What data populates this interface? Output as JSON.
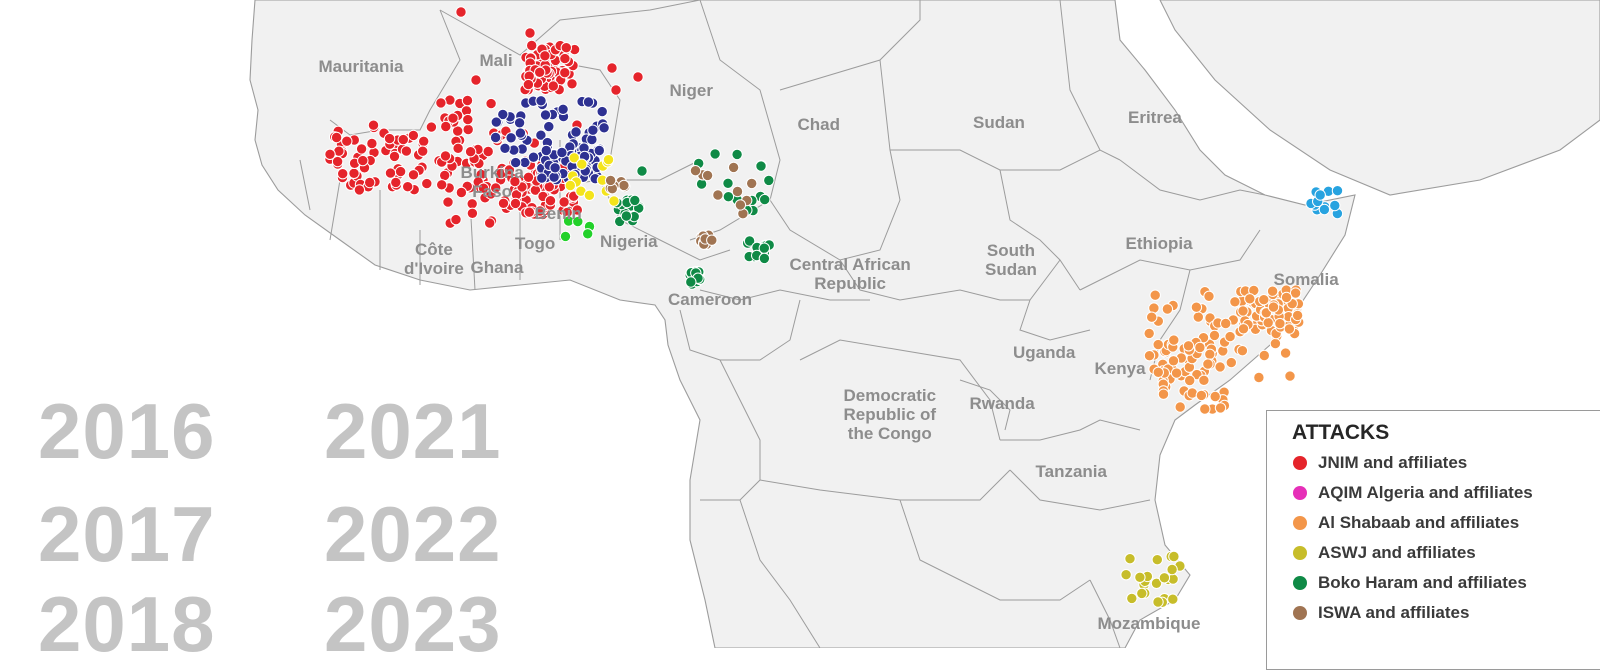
{
  "colors": {
    "land": "#f1f1f1",
    "border": "#9c9c9c",
    "ocean": "#ffffff"
  },
  "countries": [
    {
      "key": "mauritania",
      "label": "Mauritania"
    },
    {
      "key": "mali",
      "label": "Mali"
    },
    {
      "key": "niger",
      "label": "Niger"
    },
    {
      "key": "chad",
      "label": "Chad"
    },
    {
      "key": "sudan",
      "label": "Sudan"
    },
    {
      "key": "eritrea",
      "label": "Eritrea"
    },
    {
      "key": "burkina",
      "label": "Burkina\nFaso"
    },
    {
      "key": "benin",
      "label": "Benin"
    },
    {
      "key": "cote",
      "label": "Côte\nd'Ivoire"
    },
    {
      "key": "ghana",
      "label": "Ghana"
    },
    {
      "key": "togo",
      "label": "Togo"
    },
    {
      "key": "nigeria",
      "label": "Nigeria"
    },
    {
      "key": "car",
      "label": "Central African\nRepublic"
    },
    {
      "key": "cameroon",
      "label": "Cameroon"
    },
    {
      "key": "south_sudan",
      "label": "South\nSudan"
    },
    {
      "key": "ethiopia",
      "label": "Ethiopia"
    },
    {
      "key": "somalia",
      "label": "Somalia"
    },
    {
      "key": "uganda",
      "label": "Uganda"
    },
    {
      "key": "kenya",
      "label": "Kenya"
    },
    {
      "key": "drc",
      "label": "Democratic\nRepublic of\nthe Congo"
    },
    {
      "key": "rwanda",
      "label": "Rwanda"
    },
    {
      "key": "tanzania",
      "label": "Tanzania"
    },
    {
      "key": "mozambique",
      "label": "Mozambique"
    }
  ],
  "years": [
    "2016",
    "2017",
    "2018",
    "2021",
    "2022",
    "2023"
  ],
  "legend": {
    "title": "ATTACKS",
    "items": [
      {
        "key": "jnim",
        "label": "JNIM and affiliates",
        "color": "#e5242b"
      },
      {
        "key": "aqim",
        "label": "AQIM Algeria and affiliates",
        "color": "#e62fb8"
      },
      {
        "key": "shabaab",
        "label": "Al Shabaab and affiliates",
        "color": "#f3964a"
      },
      {
        "key": "aswj",
        "label": "ASWJ and affiliates",
        "color": "#c7bd2a"
      },
      {
        "key": "boko",
        "label": "Boko Haram and affiliates",
        "color": "#0f8a46"
      },
      {
        "key": "iswa",
        "label": "ISWA and affiliates",
        "color": "#a07452"
      }
    ]
  },
  "attack_clusters": [
    {
      "group": "jnim",
      "color": "#e5242b",
      "count": 330
    },
    {
      "group": "isgs",
      "color": "#2e3192",
      "count": 120
    },
    {
      "group": "yellow",
      "color": "#f4e41b",
      "count": 12
    },
    {
      "group": "ansaru",
      "color": "#22d12a",
      "count": 5
    },
    {
      "group": "boko",
      "color": "#0f8a46",
      "count": 60
    },
    {
      "group": "iswa",
      "color": "#a07452",
      "count": 30
    },
    {
      "group": "shabaab",
      "color": "#f3964a",
      "count": 170
    },
    {
      "group": "isis_somalia",
      "color": "#27a3e0",
      "count": 12
    },
    {
      "group": "aswj",
      "color": "#c7bd2a",
      "count": 22
    }
  ]
}
